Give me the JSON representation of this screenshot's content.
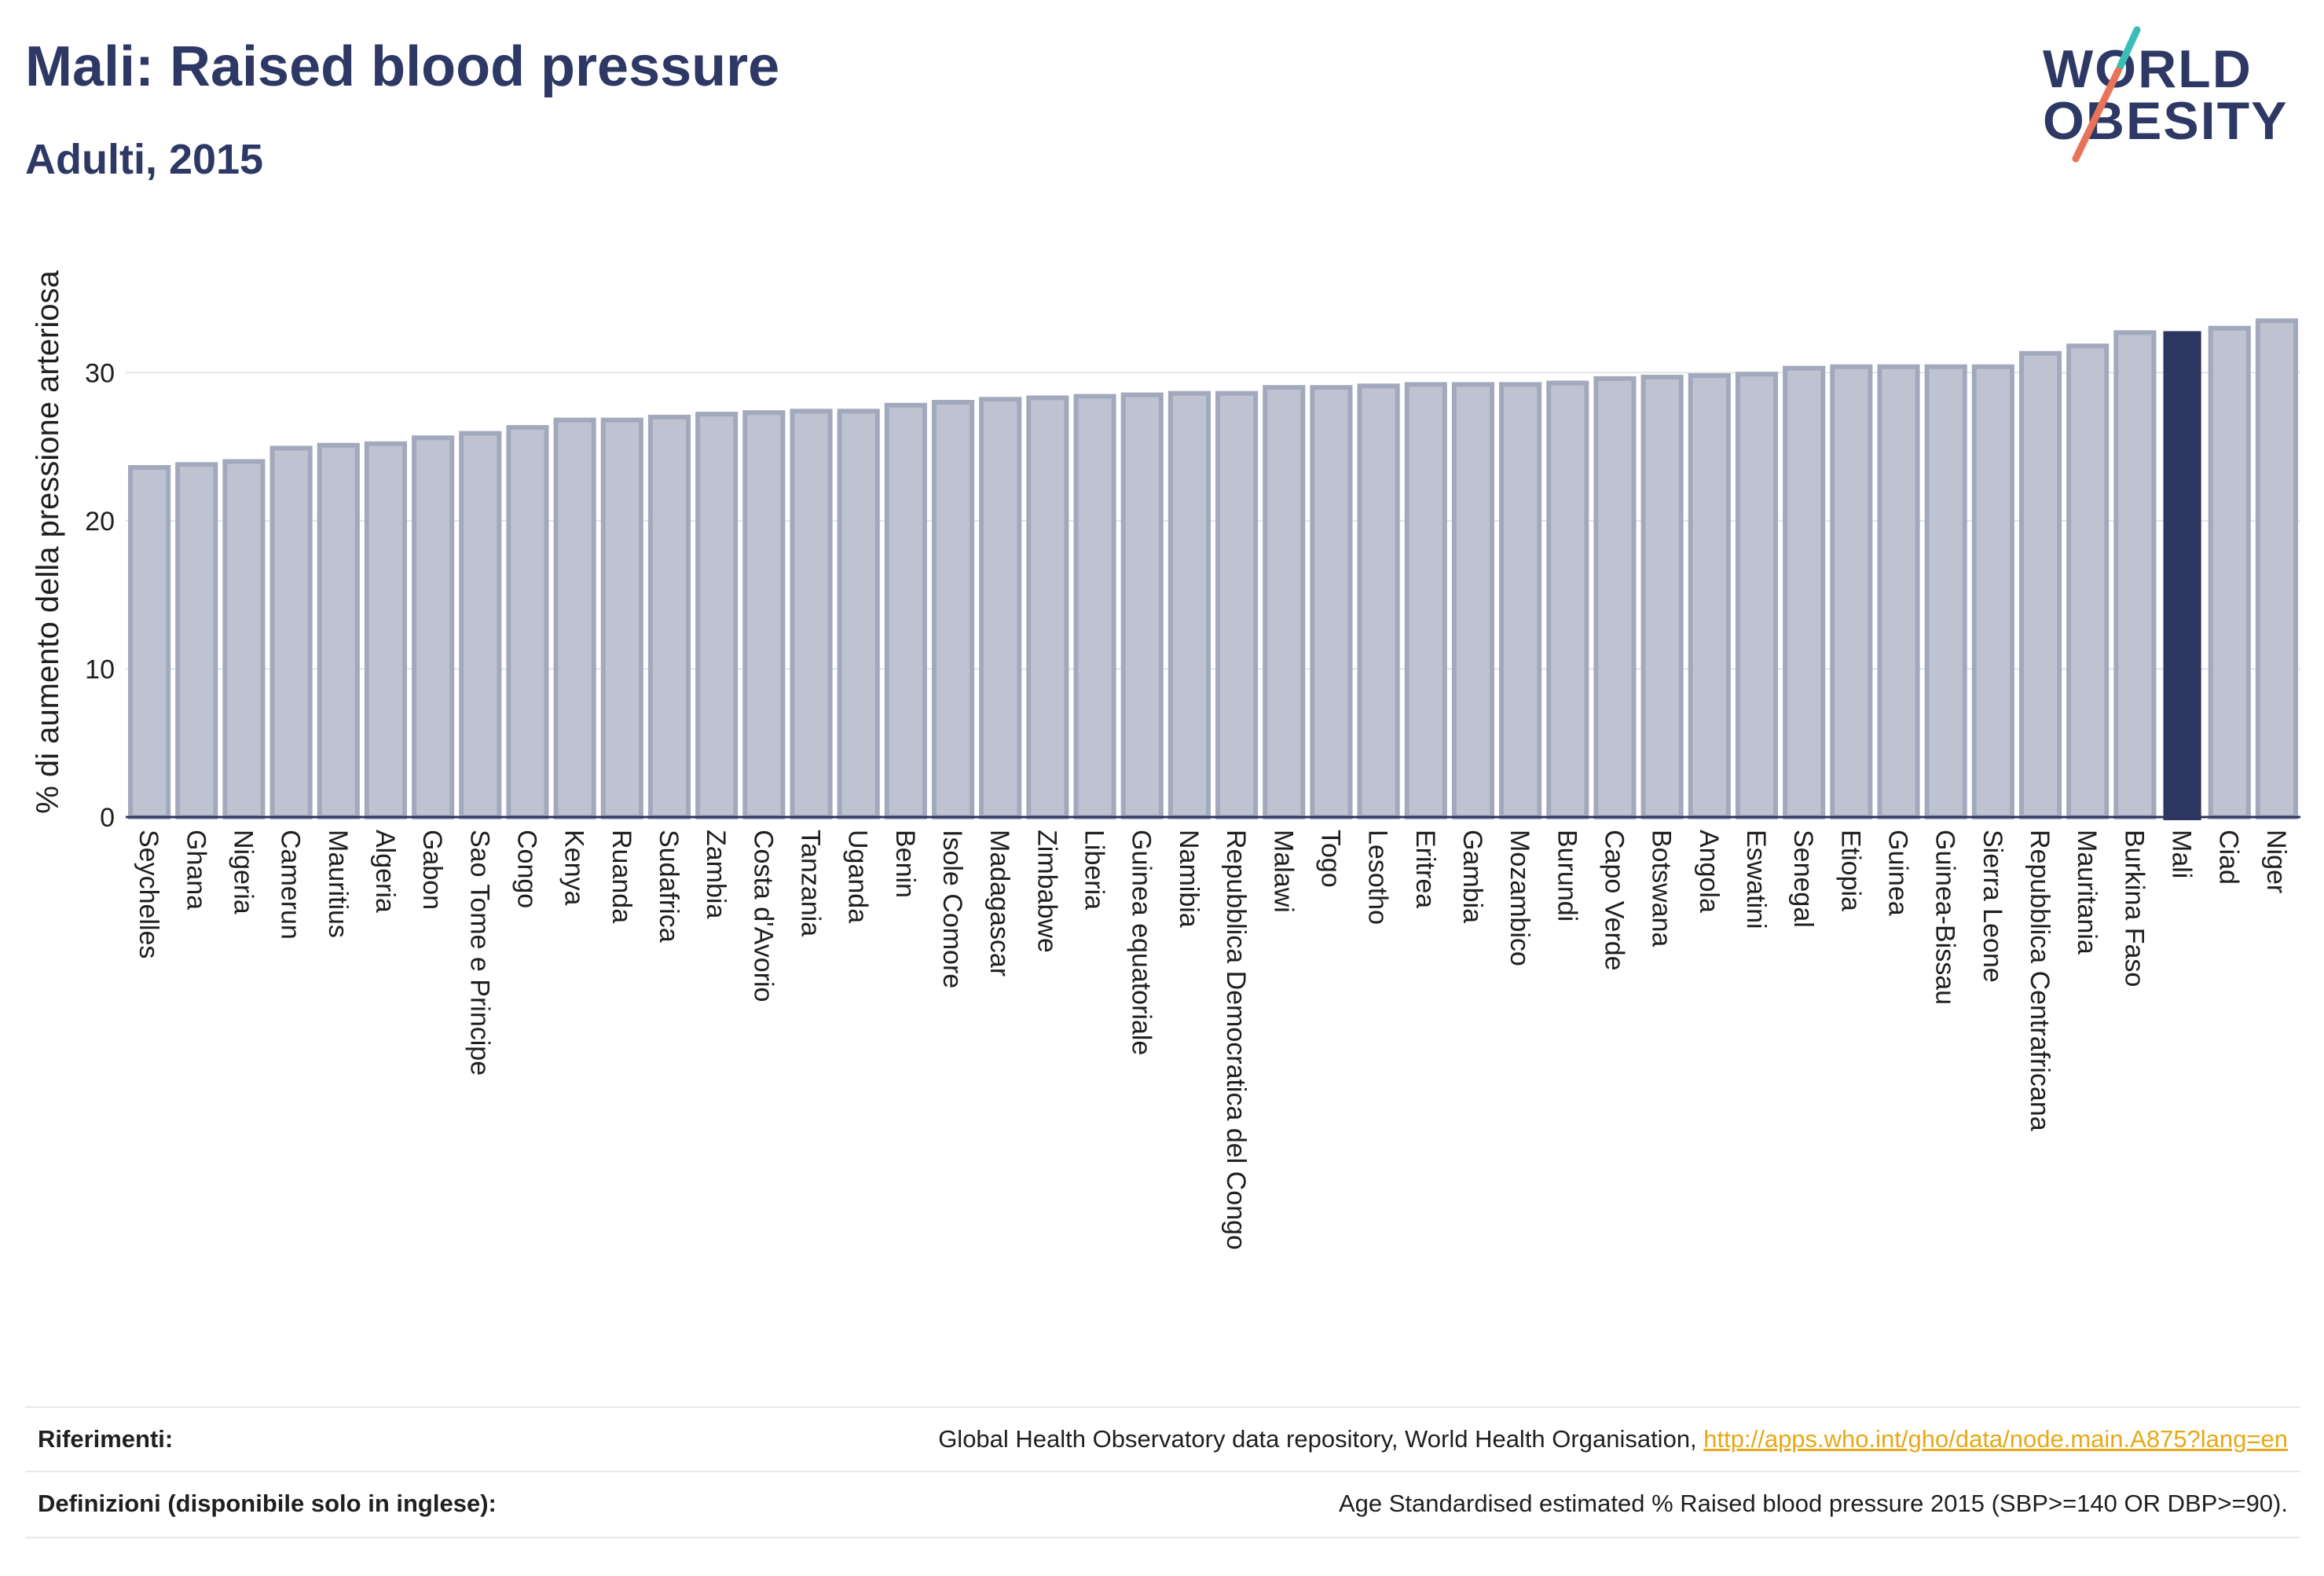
{
  "header": {
    "title": "Mali: Raised blood pressure",
    "subtitle": "Adulti, 2015"
  },
  "logo": {
    "line1": "WORLD",
    "line2": "OBESITY"
  },
  "chart_data": {
    "type": "bar",
    "ylabel": "% di aumento della pressione arteriosa",
    "ylim": [
      0,
      35
    ],
    "yticks": [
      0,
      10,
      20,
      30
    ],
    "grid": true,
    "highlight": "Mali",
    "colors": {
      "bar": "#bfc3d1",
      "bar_border": "#a3a9bd",
      "highlight": "#2d3561",
      "grid": "#e3e5ea",
      "axis": "#2d3561"
    },
    "categories": [
      "Seychelles",
      "Ghana",
      "Nigeria",
      "Camerun",
      "Mauritius",
      "Algeria",
      "Gabon",
      "Sao Tome e Principe",
      "Congo",
      "Kenya",
      "Ruanda",
      "Sudafrica",
      "Zambia",
      "Costa d'Avorio",
      "Tanzania",
      "Uganda",
      "Benin",
      "Isole Comore",
      "Madagascar",
      "Zimbabwe",
      "Liberia",
      "Guinea equatoriale",
      "Namibia",
      "Repubblica Democratica del Congo",
      "Malawi",
      "Togo",
      "Lesotho",
      "Eritrea",
      "Gambia",
      "Mozambico",
      "Burundi",
      "Capo Verde",
      "Botswana",
      "Angola",
      "Eswatini",
      "Senegal",
      "Etiopia",
      "Guinea",
      "Guinea-Bissau",
      "Sierra Leone",
      "Repubblica Centrafricana",
      "Mauritania",
      "Burkina Faso",
      "Mali",
      "Ciad",
      "Niger"
    ],
    "values": [
      23.6,
      23.8,
      24.0,
      24.9,
      25.1,
      25.2,
      25.6,
      25.9,
      26.3,
      26.8,
      26.8,
      27.0,
      27.2,
      27.3,
      27.4,
      27.4,
      27.8,
      28.0,
      28.2,
      28.3,
      28.4,
      28.5,
      28.6,
      28.6,
      29.0,
      29.0,
      29.1,
      29.2,
      29.2,
      29.2,
      29.3,
      29.6,
      29.7,
      29.8,
      29.9,
      30.3,
      30.4,
      30.4,
      30.4,
      30.4,
      31.3,
      31.8,
      32.7,
      32.8,
      33.0,
      33.5
    ]
  },
  "footer": {
    "references_label": "Riferimenti:",
    "references_text": "Global Health Observatory data repository, World Health Organisation, ",
    "references_link": "http://apps.who.int/gho/data/node.main.A875?lang=en",
    "definitions_label": "Definizioni (disponibile solo in inglese):",
    "definitions_text": "Age Standardised estimated % Raised blood pressure 2015 (SBP>=140 OR DBP>=90)."
  }
}
